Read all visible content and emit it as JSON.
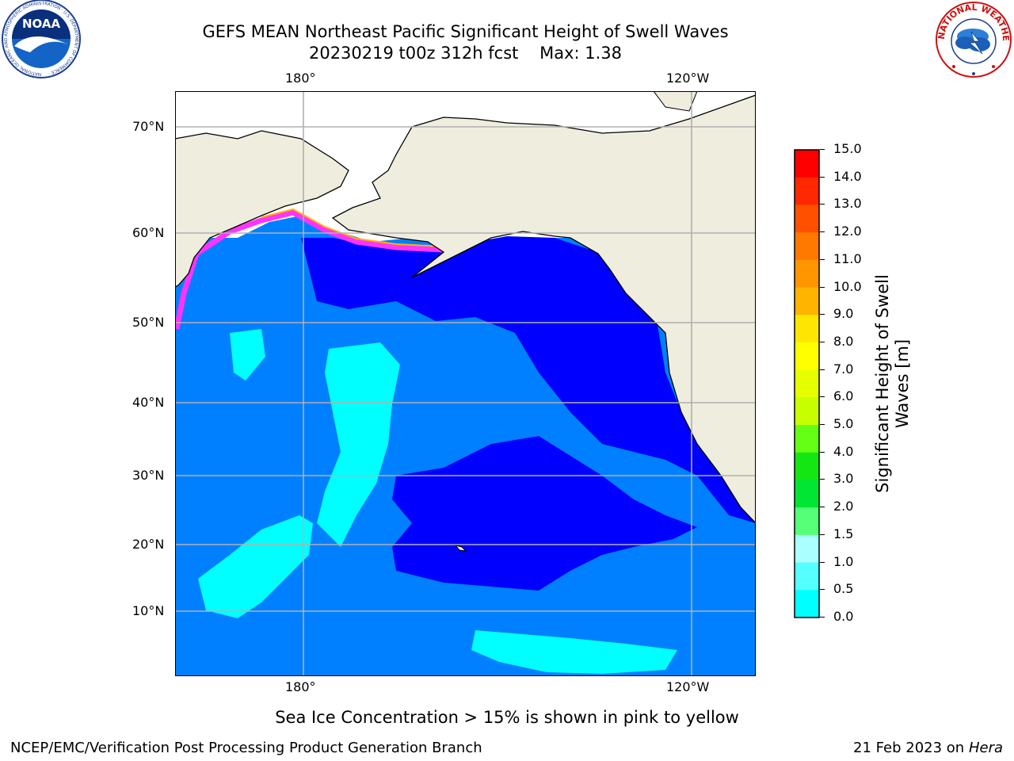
{
  "title": {
    "line1": "GEFS MEAN Northeast Pacific Significant Height of Swell Waves",
    "line2_prefix": "20230219 t00z 312h fcst",
    "max_label": "Max: 1.38"
  },
  "map": {
    "lon_labels_top": [
      "180°",
      "120°W"
    ],
    "lon_labels_bottom": [
      "180°",
      "120°W"
    ],
    "lat_labels": [
      "70°N",
      "60°N",
      "50°N",
      "40°N",
      "30°N",
      "20°N",
      "10°N"
    ]
  },
  "colorbar": {
    "label": "Significant Height of Swell Waves [m]",
    "ticks": [
      "15.0",
      "14.0",
      "13.0",
      "12.0",
      "11.0",
      "10.0",
      "9.0",
      "8.0",
      "7.0",
      "6.0",
      "5.0",
      "4.0",
      "3.0",
      "2.0",
      "1.5",
      "1.0",
      "0.5",
      "0.0"
    ],
    "colors": [
      "#ff0000",
      "#ff2800",
      "#ff5000",
      "#ff7800",
      "#ff9600",
      "#ffb400",
      "#ffe600",
      "#ffff00",
      "#e6ff00",
      "#c8ff00",
      "#64ff14",
      "#14e614",
      "#00e632",
      "#55ff77",
      "#aaffff",
      "#55ffff",
      "#00ffff",
      "#0080ff",
      "#0000ff"
    ]
  },
  "note": "Sea Ice Concentration > 15% is shown in pink to yellow",
  "footer": {
    "left": "NCEP/EMC/Verification Post Processing Product Generation Branch",
    "date": "21 Feb 2023 on",
    "machine": "Hera"
  },
  "logos": {
    "noaa": "NOAA",
    "noaa_ring": "NATIONAL OCEANIC AND ATMOSPHERIC ADMINISTRATION · U.S. DEPARTMENT OF COMMERCE ·",
    "nws_ring": "NATIONAL WEATHER SERVICE"
  },
  "palette": {
    "ocean_mid": "#0080ff",
    "ocean_low": "#0000ff",
    "ocean_high": "#00ffff",
    "land": "#efedde",
    "ice": "#ff33ff"
  }
}
